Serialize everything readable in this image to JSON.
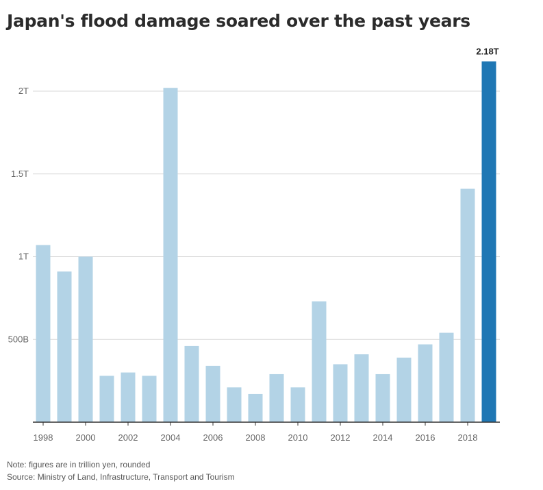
{
  "title": "Japan's flood damage soared over the past years",
  "note": "Note: figures are in trillion yen, rounded",
  "source": "Source: Ministry of Land, Infrastructure, Transport and Tourism",
  "colors": {
    "bar": "#b3d3e6",
    "highlight": "#1f77b4",
    "grid": "#d9d9d9",
    "axis": "#333333"
  },
  "chart_data": {
    "type": "bar",
    "title": "Japan's flood damage soared over the past years",
    "xlabel": "",
    "ylabel": "",
    "categories": [
      "1998",
      "1999",
      "2000",
      "2001",
      "2002",
      "2003",
      "2004",
      "2005",
      "2006",
      "2007",
      "2008",
      "2009",
      "2010",
      "2011",
      "2012",
      "2013",
      "2014",
      "2015",
      "2016",
      "2017",
      "2018",
      "2019"
    ],
    "values": [
      1.07,
      0.91,
      1.0,
      0.28,
      0.3,
      0.28,
      2.02,
      0.46,
      0.34,
      0.21,
      0.17,
      0.29,
      0.21,
      0.73,
      0.35,
      0.41,
      0.29,
      0.39,
      0.47,
      0.54,
      1.41,
      2.18
    ],
    "unit": "trillion yen",
    "highlight_index": 21,
    "value_labels": [
      {
        "index": 21,
        "text": "2.18T"
      }
    ],
    "ylim": [
      0,
      2.2
    ],
    "yticks": [
      {
        "value": 0.5,
        "label": "500B"
      },
      {
        "value": 1.0,
        "label": "1T"
      },
      {
        "value": 1.5,
        "label": "1.5T"
      },
      {
        "value": 2.0,
        "label": "2T"
      }
    ],
    "xtick_labels": [
      "1998",
      "2000",
      "2002",
      "2004",
      "2006",
      "2008",
      "2010",
      "2012",
      "2014",
      "2016",
      "2018"
    ],
    "grid": true,
    "legend": "none"
  }
}
